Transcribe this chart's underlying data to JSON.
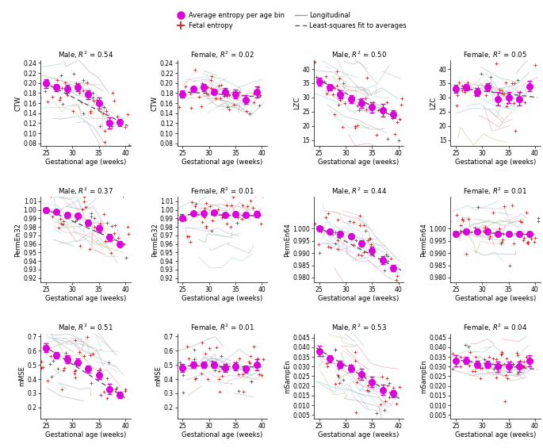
{
  "subplots": [
    {
      "row": 0,
      "col": 0,
      "title": "Male, $R^2$ = 0.54",
      "ylabel": "CTW",
      "xlabel": "Gestational age (weeks)",
      "xlim": [
        24,
        41
      ],
      "ylim": [
        0.075,
        0.245
      ],
      "yticks": [
        0.08,
        0.1,
        0.12,
        0.14,
        0.16,
        0.18,
        0.2,
        0.22,
        0.24
      ],
      "xticks": [
        25,
        30,
        35,
        40
      ],
      "avg_x": [
        25,
        27,
        29,
        31,
        33,
        35,
        37,
        39
      ],
      "avg_y": [
        0.199,
        0.191,
        0.188,
        0.192,
        0.177,
        0.16,
        0.121,
        0.122
      ],
      "avg_err": [
        0.009,
        0.007,
        0.008,
        0.008,
        0.009,
        0.011,
        0.011,
        0.007
      ],
      "fit_x": [
        24.5,
        40.5
      ],
      "fit_y": [
        0.202,
        0.115
      ],
      "n_subjects": 22,
      "spread_factor": 0.12
    },
    {
      "row": 0,
      "col": 1,
      "title": "Female, $R^2$ = 0.02",
      "ylabel": "CTW",
      "xlabel": "Gestational age (weeks)",
      "xlim": [
        24,
        41
      ],
      "ylim": [
        0.075,
        0.245
      ],
      "yticks": [
        0.08,
        0.1,
        0.12,
        0.14,
        0.16,
        0.18,
        0.2,
        0.22,
        0.24
      ],
      "xticks": [
        25,
        30,
        35,
        40
      ],
      "avg_x": [
        25,
        27,
        29,
        31,
        33,
        35,
        37,
        39
      ],
      "avg_y": [
        0.178,
        0.188,
        0.191,
        0.183,
        0.182,
        0.178,
        0.167,
        0.182
      ],
      "avg_err": [
        0.007,
        0.006,
        0.007,
        0.006,
        0.008,
        0.009,
        0.009,
        0.011
      ],
      "fit_x": [
        24.5,
        40.5
      ],
      "fit_y": [
        0.183,
        0.172
      ],
      "n_subjects": 20,
      "spread_factor": 0.1
    },
    {
      "row": 0,
      "col": 2,
      "title": "Male, $R^2$ = 0.50",
      "ylabel": "LZC",
      "xlabel": "Gestational age (weeks)",
      "xlim": [
        24,
        41
      ],
      "ylim": [
        13,
        43
      ],
      "yticks": [
        15,
        20,
        25,
        30,
        35,
        40
      ],
      "xticks": [
        25,
        30,
        35,
        40
      ],
      "avg_x": [
        25,
        27,
        29,
        31,
        33,
        35,
        37,
        39
      ],
      "avg_y": [
        35.5,
        33.5,
        31.0,
        29.5,
        28.0,
        26.5,
        25.5,
        24.0
      ],
      "avg_err": [
        1.4,
        1.1,
        1.4,
        1.4,
        1.7,
        1.9,
        2.3,
        1.4
      ],
      "fit_x": [
        24.5,
        40.5
      ],
      "fit_y": [
        36.5,
        22.0
      ],
      "n_subjects": 22,
      "spread_factor": 0.14
    },
    {
      "row": 0,
      "col": 3,
      "title": "Female, $R^2$ = 0.05",
      "ylabel": "LZC",
      "xlabel": "Gestational age (weeks)",
      "xlim": [
        24,
        41
      ],
      "ylim": [
        13,
        43
      ],
      "yticks": [
        15,
        20,
        25,
        30,
        35,
        40
      ],
      "xticks": [
        25,
        30,
        35,
        40
      ],
      "avg_x": [
        25,
        27,
        29,
        31,
        33,
        35,
        37,
        39
      ],
      "avg_y": [
        33.0,
        33.5,
        32.0,
        33.5,
        29.5,
        30.0,
        29.5,
        34.0
      ],
      "avg_err": [
        1.4,
        1.1,
        1.4,
        1.4,
        2.3,
        1.9,
        2.3,
        1.9
      ],
      "fit_x": [
        24.5,
        40.5
      ],
      "fit_y": [
        33.5,
        30.0
      ],
      "n_subjects": 20,
      "spread_factor": 0.12
    },
    {
      "row": 1,
      "col": 0,
      "title": "Male, $R^2$ = 0.37",
      "ylabel": "PermEn32",
      "xlabel": "Gestational age (weeks)",
      "xlim": [
        24,
        41
      ],
      "ylim": [
        0.915,
        1.015
      ],
      "yticks": [
        0.92,
        0.93,
        0.94,
        0.95,
        0.96,
        0.97,
        0.98,
        0.99,
        1.0,
        1.01
      ],
      "xticks": [
        25,
        30,
        35,
        40
      ],
      "avg_x": [
        25,
        27,
        29,
        31,
        33,
        35,
        37,
        39
      ],
      "avg_y": [
        1.0,
        0.998,
        0.994,
        0.993,
        0.985,
        0.978,
        0.968,
        0.96
      ],
      "avg_err": [
        0.0025,
        0.0018,
        0.0025,
        0.0025,
        0.0033,
        0.0042,
        0.0042,
        0.0033
      ],
      "fit_x": [
        24.5,
        40.5
      ],
      "fit_y": [
        1.002,
        0.958
      ],
      "n_subjects": 22,
      "spread_factor": 0.14
    },
    {
      "row": 1,
      "col": 1,
      "title": "Female, $R^2$ = 0.01",
      "ylabel": "PermEn32",
      "xlabel": "Gestational age (weeks)",
      "xlim": [
        24,
        41
      ],
      "ylim": [
        0.915,
        1.015
      ],
      "yticks": [
        0.92,
        0.93,
        0.94,
        0.95,
        0.96,
        0.97,
        0.98,
        0.99,
        1.0,
        1.01
      ],
      "xticks": [
        25,
        30,
        35,
        40
      ],
      "avg_x": [
        25,
        27,
        29,
        31,
        33,
        35,
        37,
        39
      ],
      "avg_y": [
        0.99,
        0.996,
        0.996,
        0.997,
        0.994,
        0.995,
        0.994,
        0.995
      ],
      "avg_err": [
        0.0025,
        0.0018,
        0.0018,
        0.0018,
        0.0025,
        0.0025,
        0.0025,
        0.0033
      ],
      "fit_x": [
        24.5,
        40.5
      ],
      "fit_y": [
        0.9945,
        0.993
      ],
      "n_subjects": 20,
      "spread_factor": 0.14
    },
    {
      "row": 1,
      "col": 2,
      "title": "Male, $R^2$ = 0.44",
      "ylabel": "PermEn64",
      "xlabel": "Gestational age (weeks)",
      "xlim": [
        24,
        41
      ],
      "ylim": [
        0.978,
        1.013
      ],
      "yticks": [
        0.98,
        0.985,
        0.99,
        0.995,
        1.0
      ],
      "xticks": [
        25,
        30,
        35,
        40
      ],
      "avg_x": [
        25,
        27,
        29,
        31,
        33,
        35,
        37,
        39
      ],
      "avg_y": [
        1.0,
        0.999,
        0.998,
        0.997,
        0.994,
        0.991,
        0.987,
        0.984
      ],
      "avg_err": [
        0.0009,
        0.0008,
        0.0009,
        0.0009,
        0.0013,
        0.0016,
        0.0016,
        0.0013
      ],
      "fit_x": [
        24.5,
        40.5
      ],
      "fit_y": [
        1.001,
        0.983
      ],
      "n_subjects": 22,
      "spread_factor": 0.14
    },
    {
      "row": 1,
      "col": 3,
      "title": "Female, $R^2$ = 0.01",
      "ylabel": "PermEn64",
      "xlabel": "Gestational age (weeks)",
      "xlim": [
        24,
        41
      ],
      "ylim": [
        0.978,
        1.013
      ],
      "yticks": [
        0.98,
        0.985,
        0.99,
        0.995,
        1.0
      ],
      "xticks": [
        25,
        30,
        35,
        40
      ],
      "avg_x": [
        25,
        27,
        29,
        31,
        33,
        35,
        37,
        39
      ],
      "avg_y": [
        0.998,
        0.999,
        0.999,
        0.999,
        0.998,
        0.998,
        0.998,
        0.998
      ],
      "avg_err": [
        0.0008,
        0.0007,
        0.0007,
        0.0007,
        0.0009,
        0.0009,
        0.0009,
        0.001
      ],
      "fit_x": [
        24.5,
        40.5
      ],
      "fit_y": [
        0.9988,
        0.9975
      ],
      "n_subjects": 20,
      "spread_factor": 0.12
    },
    {
      "row": 2,
      "col": 0,
      "title": "Male, $R^2$ = 0.51",
      "ylabel": "mMSE",
      "xlabel": "Gestational age (weeks)",
      "xlim": [
        24,
        41
      ],
      "ylim": [
        0.12,
        0.72
      ],
      "yticks": [
        0.2,
        0.3,
        0.4,
        0.5,
        0.6,
        0.7
      ],
      "xticks": [
        25,
        30,
        35,
        40
      ],
      "avg_x": [
        25,
        27,
        29,
        31,
        33,
        35,
        37,
        39
      ],
      "avg_y": [
        0.62,
        0.57,
        0.54,
        0.52,
        0.47,
        0.43,
        0.33,
        0.29
      ],
      "avg_err": [
        0.032,
        0.022,
        0.027,
        0.025,
        0.027,
        0.032,
        0.035,
        0.022
      ],
      "fit_x": [
        24.5,
        40.5
      ],
      "fit_y": [
        0.635,
        0.255
      ],
      "n_subjects": 22,
      "spread_factor": 0.14
    },
    {
      "row": 2,
      "col": 1,
      "title": "Female, $R^2$ = 0.01",
      "ylabel": "mMSE",
      "xlabel": "Gestational age (weeks)",
      "xlim": [
        24,
        41
      ],
      "ylim": [
        0.12,
        0.72
      ],
      "yticks": [
        0.2,
        0.3,
        0.4,
        0.5,
        0.6,
        0.7
      ],
      "xticks": [
        25,
        30,
        35,
        40
      ],
      "avg_x": [
        25,
        27,
        29,
        31,
        33,
        35,
        37,
        39
      ],
      "avg_y": [
        0.48,
        0.5,
        0.5,
        0.5,
        0.48,
        0.49,
        0.47,
        0.5
      ],
      "avg_err": [
        0.027,
        0.022,
        0.022,
        0.022,
        0.027,
        0.027,
        0.027,
        0.037
      ],
      "fit_x": [
        24.5,
        40.5
      ],
      "fit_y": [
        0.494,
        0.484
      ],
      "n_subjects": 20,
      "spread_factor": 0.12
    },
    {
      "row": 2,
      "col": 2,
      "title": "Male, $R^2$ = 0.53",
      "ylabel": "mSampEn",
      "xlabel": "Gestational age (weeks)",
      "xlim": [
        24,
        41
      ],
      "ylim": [
        0.003,
        0.047
      ],
      "yticks": [
        0.005,
        0.01,
        0.015,
        0.02,
        0.025,
        0.03,
        0.035,
        0.04,
        0.045
      ],
      "xticks": [
        25,
        30,
        35,
        40
      ],
      "avg_x": [
        25,
        27,
        29,
        31,
        33,
        35,
        37,
        39
      ],
      "avg_y": [
        0.038,
        0.034,
        0.031,
        0.029,
        0.026,
        0.022,
        0.018,
        0.016
      ],
      "avg_err": [
        0.0027,
        0.0018,
        0.0018,
        0.0018,
        0.0027,
        0.0027,
        0.0027,
        0.0018
      ],
      "fit_x": [
        24.5,
        40.5
      ],
      "fit_y": [
        0.0395,
        0.013
      ],
      "n_subjects": 22,
      "spread_factor": 0.14
    },
    {
      "row": 2,
      "col": 3,
      "title": "Female, $R^2$ = 0.04",
      "ylabel": "mSampEn",
      "xlabel": "Gestational age (weeks)",
      "xlim": [
        24,
        41
      ],
      "ylim": [
        0.003,
        0.047
      ],
      "yticks": [
        0.005,
        0.01,
        0.015,
        0.02,
        0.025,
        0.03,
        0.035,
        0.04,
        0.045
      ],
      "xticks": [
        25,
        30,
        35,
        40
      ],
      "avg_x": [
        25,
        27,
        29,
        31,
        33,
        35,
        37,
        39
      ],
      "avg_y": [
        0.033,
        0.033,
        0.031,
        0.031,
        0.03,
        0.03,
        0.03,
        0.033
      ],
      "avg_err": [
        0.0027,
        0.0018,
        0.0018,
        0.0018,
        0.0027,
        0.0027,
        0.0027,
        0.0027
      ],
      "fit_x": [
        24.5,
        40.5
      ],
      "fit_y": [
        0.0335,
        0.0285
      ],
      "n_subjects": 20,
      "spread_factor": 0.1
    }
  ],
  "colors": {
    "avg_marker": "#dd00dd",
    "fetal_scatter": "#cc2222",
    "longitudinal_colors": [
      "#aaaaaa",
      "#bbbbbb",
      "#999999",
      "#cccccc",
      "#b0b0b0"
    ],
    "fit_line": "#555555",
    "background": "#ffffff"
  },
  "seed": 7
}
